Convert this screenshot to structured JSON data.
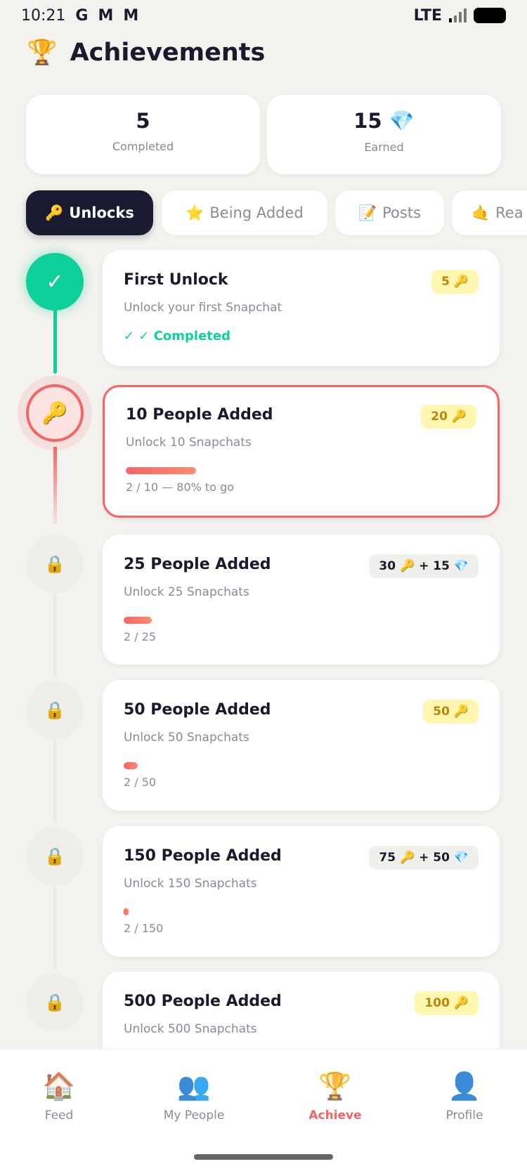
{
  "status_bar": {
    "time": "10:21",
    "apps": [
      "G",
      "M",
      "M"
    ],
    "network": "LTE"
  },
  "header": {
    "icon": "🏆",
    "title": "Achievements"
  },
  "stats": [
    {
      "value": "5",
      "label": "Completed"
    },
    {
      "value": "15 💎",
      "label": "Earned"
    }
  ],
  "tabs": [
    {
      "icon": "🔑",
      "label": "Unlocks",
      "active": true
    },
    {
      "icon": "⭐",
      "label": "Being Added"
    },
    {
      "icon": "📝",
      "label": "Posts"
    },
    {
      "icon": "🤙",
      "label": "Rea"
    }
  ],
  "achievements": [
    {
      "title": "First Unlock",
      "subtitle": "Unlock your first Snapchat",
      "reward": "5 🔑",
      "reward_style": "yellow",
      "state": "completed",
      "status_text": "✓ ✓ Completed"
    },
    {
      "title": "10 People Added",
      "subtitle": "Unlock 10 Snapchats",
      "reward": "20 🔑",
      "reward_style": "yellow",
      "state": "current",
      "progress": 0.2,
      "progress_text": "2 / 10 — 80% to go"
    },
    {
      "title": "25 People Added",
      "subtitle": "Unlock 25 Snapchats",
      "reward": "30 🔑 + 15 💎",
      "reward_style": "gray",
      "state": "locked",
      "progress": 0.08,
      "progress_text": "2 / 25"
    },
    {
      "title": "50 People Added",
      "subtitle": "Unlock 50 Snapchats",
      "reward": "50 🔑",
      "reward_style": "yellow",
      "state": "locked",
      "progress": 0.04,
      "progress_text": "2 / 50"
    },
    {
      "title": "150 People Added",
      "subtitle": "Unlock 150 Snapchats",
      "reward": "75 🔑 + 50 💎",
      "reward_style": "gray",
      "state": "locked",
      "progress": 0.013,
      "progress_text": "2 / 150"
    },
    {
      "title": "500 People Added",
      "subtitle": "Unlock 500 Snapchats",
      "reward": "100 🔑",
      "reward_style": "yellow",
      "state": "locked"
    }
  ],
  "icons": {
    "completed": "✓",
    "current": "🔑",
    "locked": "🔒"
  },
  "colors": {
    "accent": "#f56565",
    "success": "#0fcf9a",
    "dark": "#1a1a30",
    "reward_yellow": "#fff7b0"
  },
  "bottom_nav": [
    {
      "icon": "🏠",
      "label": "Feed"
    },
    {
      "icon": "👥",
      "label": "My People"
    },
    {
      "icon": "🏆",
      "label": "Achieve",
      "active": true
    },
    {
      "icon": "👤",
      "label": "Profile"
    }
  ]
}
